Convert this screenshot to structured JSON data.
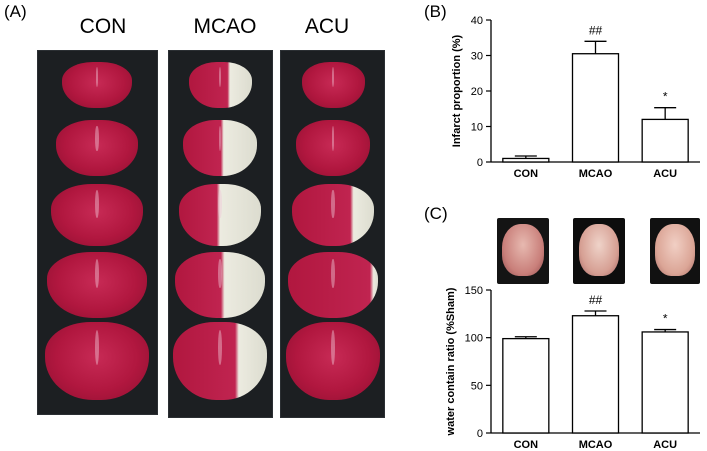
{
  "panel_a": {
    "label": "(A)",
    "groups": [
      "CON",
      "MCAO",
      "ACU"
    ]
  },
  "panel_b": {
    "label": "(B)"
  },
  "panel_c": {
    "label": "(C)"
  },
  "colors": {
    "tissue_red": "#b1173f",
    "infarct_white": "#ecebe0",
    "background_dark": "#1c1f22",
    "bar_fill": "#ffffff",
    "bar_stroke": "#000000"
  },
  "chart_data": [
    {
      "type": "bar",
      "categories": [
        "CON",
        "MCAO",
        "ACU"
      ],
      "values": [
        1,
        30.5,
        12
      ],
      "errors": [
        0.7,
        3.5,
        3.3
      ],
      "annotations": [
        "",
        "##",
        "*"
      ],
      "title": "",
      "xlabel": "",
      "ylabel": "Infarct proportion (%)",
      "ylim": [
        0,
        40
      ],
      "yticks": [
        0,
        10,
        20,
        30,
        40
      ],
      "grid": false
    },
    {
      "type": "bar",
      "categories": [
        "CON",
        "MCAO",
        "ACU"
      ],
      "values": [
        99,
        123,
        106
      ],
      "errors": [
        2,
        5,
        2.5
      ],
      "annotations": [
        "",
        "##",
        "*"
      ],
      "title": "",
      "xlabel": "",
      "ylabel": "water contain ratio (%Sham)",
      "ylim": [
        0,
        150
      ],
      "yticks": [
        0,
        50,
        100,
        150
      ],
      "grid": false
    }
  ]
}
